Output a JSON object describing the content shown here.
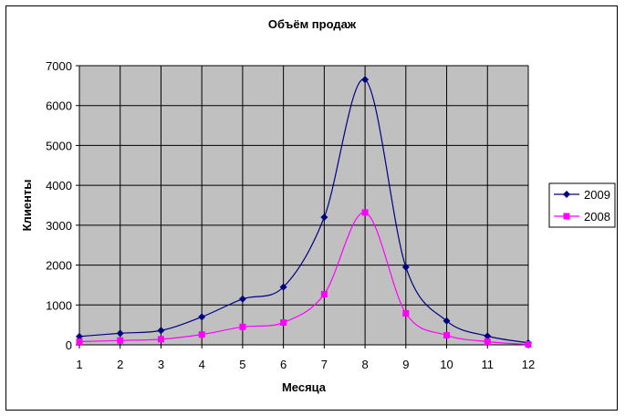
{
  "chart_data": {
    "type": "line",
    "title": "Объём продаж",
    "xlabel": "Месяца",
    "ylabel": "Клиенты",
    "x": [
      1,
      2,
      3,
      4,
      5,
      6,
      7,
      8,
      9,
      10,
      11,
      12
    ],
    "xticks": [
      "1",
      "2",
      "3",
      "4",
      "5",
      "6",
      "7",
      "8",
      "9",
      "10",
      "11",
      "12"
    ],
    "yticks": [
      "0",
      "1000",
      "2000",
      "3000",
      "4000",
      "5000",
      "6000",
      "7000"
    ],
    "ylim": [
      0,
      7000
    ],
    "grid": true,
    "plot_background": "#c0c0c0",
    "legend_position": "right",
    "series": [
      {
        "name": "2009",
        "color": "#000080",
        "marker": "diamond",
        "values": [
          210,
          290,
          360,
          700,
          1150,
          1450,
          3200,
          6650,
          1950,
          600,
          220,
          50
        ]
      },
      {
        "name": "2008",
        "color": "#ff00ff",
        "marker": "square",
        "values": [
          80,
          110,
          140,
          260,
          450,
          560,
          1270,
          3320,
          790,
          240,
          80,
          10
        ]
      }
    ]
  }
}
